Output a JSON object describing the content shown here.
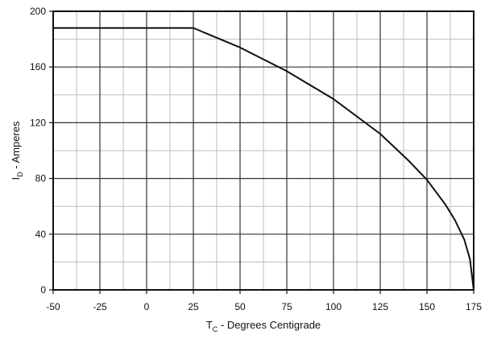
{
  "chart_data": {
    "type": "line",
    "title": "",
    "xlabel_main": "T",
    "xlabel_sub": "C",
    "xlabel_rest": " - Degrees Centigrade",
    "ylabel_main": "I",
    "ylabel_sub": "D",
    "ylabel_rest": " - Amperes",
    "xlim": [
      -50,
      175
    ],
    "ylim": [
      0,
      200
    ],
    "x_ticks": [
      -50,
      -25,
      0,
      25,
      50,
      75,
      100,
      125,
      150,
      175
    ],
    "y_ticks": [
      0,
      40,
      80,
      120,
      160,
      200
    ],
    "grid": true,
    "series": [
      {
        "x": [
          -50,
          25,
          50,
          75,
          100,
          125,
          140,
          150,
          160,
          165,
          170,
          173,
          175
        ],
        "y": [
          188,
          188,
          174,
          157,
          137,
          112,
          93,
          79,
          61,
          50,
          36,
          22,
          0
        ]
      }
    ],
    "colors": {
      "line": "#111111",
      "major_grid": "#333333",
      "minor_grid": "#bdbdbd"
    }
  }
}
